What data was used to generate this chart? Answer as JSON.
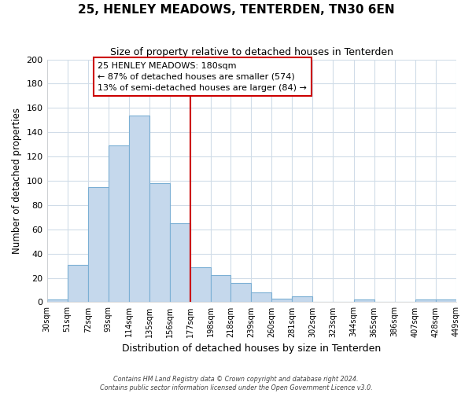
{
  "title": "25, HENLEY MEADOWS, TENTERDEN, TN30 6EN",
  "subtitle": "Size of property relative to detached houses in Tenterden",
  "xlabel": "Distribution of detached houses by size in Tenterden",
  "ylabel": "Number of detached properties",
  "bin_edges": [
    30,
    51,
    72,
    93,
    114,
    135,
    156,
    177,
    198,
    218,
    239,
    260,
    281,
    302,
    323,
    344,
    365,
    386,
    407,
    428,
    449
  ],
  "bar_counts": [
    2,
    31,
    95,
    129,
    154,
    98,
    65,
    29,
    22,
    16,
    8,
    3,
    5,
    0,
    0,
    2,
    0,
    0,
    2,
    2
  ],
  "bar_color": "#c5d8ec",
  "bar_edge_color": "#7bafd4",
  "vline_x": 177,
  "vline_color": "#cc0000",
  "annotation_text": "25 HENLEY MEADOWS: 180sqm\n← 87% of detached houses are smaller (574)\n13% of semi-detached houses are larger (84) →",
  "annotation_box_color": "#ffffff",
  "annotation_box_edge": "#cc0000",
  "ylim": [
    0,
    200
  ],
  "yticks": [
    0,
    20,
    40,
    60,
    80,
    100,
    120,
    140,
    160,
    180,
    200
  ],
  "background_color": "#ffffff",
  "fig_background_color": "#ffffff",
  "grid_color": "#d0dce8",
  "footer_line1": "Contains HM Land Registry data © Crown copyright and database right 2024.",
  "footer_line2": "Contains public sector information licensed under the Open Government Licence v3.0."
}
